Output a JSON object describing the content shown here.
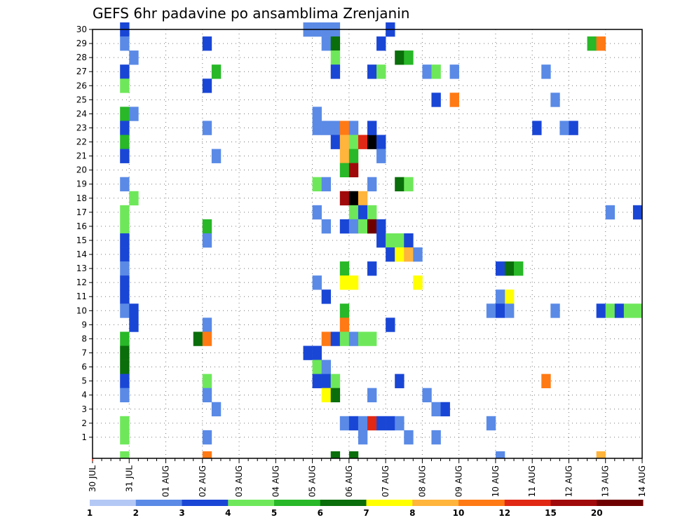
{
  "chart_data": {
    "type": "heatmap",
    "title": "GEFS 6hr padavine po ansamblima Zrenjanin",
    "y_ticks": [
      "1",
      "2",
      "3",
      "4",
      "5",
      "6",
      "7",
      "8",
      "9",
      "10",
      "11",
      "12",
      "13",
      "14",
      "15",
      "16",
      "17",
      "18",
      "19",
      "20",
      "21",
      "22",
      "23",
      "24",
      "25",
      "26",
      "27",
      "28",
      "29",
      "30"
    ],
    "x_ticks": [
      "30 JUL",
      "31 JUL",
      "01 AUG",
      "02 AUG",
      "03 AUG",
      "04 AUG",
      "05 AUG",
      "06 AUG",
      "07 AUG",
      "08 AUG",
      "09 AUG",
      "10 AUG",
      "11 AUG",
      "12 AUG",
      "13 AUG",
      "14 AUG"
    ],
    "x_start": "30 JUL 00",
    "step_hours": 6,
    "members": 30,
    "grid": true,
    "colorbar": {
      "colors": [
        "#b4c8f5",
        "#5a8ae6",
        "#1a46d6",
        "#6ee85a",
        "#28b828",
        "#0a6e0a",
        "#ffff00",
        "#ffb43c",
        "#ff7a14",
        "#e02814",
        "#a00a0a",
        "#6e0000"
      ],
      "labels": [
        "1",
        "2",
        "3",
        "4",
        "5",
        "6",
        "7",
        "8",
        "10",
        "12",
        "15",
        "20"
      ]
    },
    "cells": [
      [
        3,
        30,
        2
      ],
      [
        3,
        29,
        1
      ],
      [
        4,
        28,
        1
      ],
      [
        3,
        27,
        2
      ],
      [
        3,
        26,
        3
      ],
      [
        3,
        24,
        4
      ],
      [
        4,
        24,
        1
      ],
      [
        3,
        23,
        2
      ],
      [
        3,
        22,
        4
      ],
      [
        3,
        21,
        2
      ],
      [
        3,
        19,
        1
      ],
      [
        4,
        18,
        3
      ],
      [
        3,
        17,
        3
      ],
      [
        3,
        16,
        3
      ],
      [
        3,
        15,
        2
      ],
      [
        3,
        14,
        2
      ],
      [
        3,
        13,
        1
      ],
      [
        3,
        12,
        2
      ],
      [
        3,
        11,
        2
      ],
      [
        3,
        10,
        1
      ],
      [
        4,
        10,
        2
      ],
      [
        4,
        9,
        2
      ],
      [
        3,
        8,
        4
      ],
      [
        3,
        7,
        5
      ],
      [
        3,
        6,
        5
      ],
      [
        3,
        5,
        2
      ],
      [
        3,
        4,
        1
      ],
      [
        3,
        2,
        3
      ],
      [
        3,
        1,
        3
      ],
      [
        3,
        0,
        3
      ],
      [
        12,
        29,
        2
      ],
      [
        13,
        27,
        4
      ],
      [
        12,
        26,
        2
      ],
      [
        12,
        23,
        1
      ],
      [
        13,
        21,
        1
      ],
      [
        12,
        16,
        4
      ],
      [
        12,
        15,
        1
      ],
      [
        12,
        9,
        1
      ],
      [
        11,
        8,
        5
      ],
      [
        12,
        8,
        8
      ],
      [
        12,
        5,
        3
      ],
      [
        12,
        4,
        1
      ],
      [
        13,
        3,
        1
      ],
      [
        12,
        1,
        1
      ],
      [
        12,
        0,
        8
      ],
      [
        23,
        30,
        1
      ],
      [
        24,
        30,
        1
      ],
      [
        25,
        30,
        1
      ],
      [
        26,
        30,
        1
      ],
      [
        25,
        29,
        1
      ],
      [
        26,
        29,
        5
      ],
      [
        26,
        28,
        3
      ],
      [
        26,
        27,
        2
      ],
      [
        24,
        24,
        1
      ],
      [
        24,
        23,
        1
      ],
      [
        25,
        23,
        1
      ],
      [
        26,
        23,
        1
      ],
      [
        27,
        23,
        8
      ],
      [
        28,
        23,
        1
      ],
      [
        26,
        22,
        2
      ],
      [
        27,
        22,
        7
      ],
      [
        28,
        22,
        3
      ],
      [
        29,
        22,
        9
      ],
      [
        30,
        22,
        12
      ],
      [
        31,
        22,
        2
      ],
      [
        27,
        21,
        7
      ],
      [
        28,
        21,
        4
      ],
      [
        27,
        20,
        4
      ],
      [
        28,
        20,
        10
      ],
      [
        24,
        19,
        3
      ],
      [
        25,
        19,
        1
      ],
      [
        27,
        18,
        10
      ],
      [
        28,
        18,
        12
      ],
      [
        29,
        18,
        7
      ],
      [
        24,
        17,
        1
      ],
      [
        28,
        17,
        3
      ],
      [
        29,
        17,
        2
      ],
      [
        30,
        17,
        3
      ],
      [
        25,
        16,
        1
      ],
      [
        27,
        16,
        2
      ],
      [
        28,
        16,
        1
      ],
      [
        29,
        16,
        3
      ],
      [
        30,
        16,
        11
      ],
      [
        27,
        13,
        4
      ],
      [
        27,
        12,
        6
      ],
      [
        28,
        12,
        6
      ],
      [
        24,
        12,
        1
      ],
      [
        25,
        11,
        2
      ],
      [
        27,
        10,
        4
      ],
      [
        27,
        9,
        8
      ],
      [
        25,
        8,
        8
      ],
      [
        26,
        8,
        2
      ],
      [
        27,
        8,
        3
      ],
      [
        28,
        8,
        1
      ],
      [
        29,
        8,
        3
      ],
      [
        23,
        7,
        2
      ],
      [
        24,
        7,
        2
      ],
      [
        24,
        6,
        3
      ],
      [
        25,
        6,
        1
      ],
      [
        24,
        5,
        2
      ],
      [
        25,
        5,
        2
      ],
      [
        26,
        5,
        3
      ],
      [
        25,
        4,
        6
      ],
      [
        26,
        4,
        5
      ],
      [
        27,
        2,
        1
      ],
      [
        28,
        2,
        2
      ],
      [
        29,
        2,
        1
      ],
      [
        29,
        1,
        1
      ],
      [
        30,
        2,
        9
      ],
      [
        31,
        2,
        2
      ],
      [
        32,
        2,
        2
      ],
      [
        33,
        2,
        1
      ],
      [
        26,
        0,
        5
      ],
      [
        28,
        0,
        5
      ],
      [
        32,
        30,
        2
      ],
      [
        31,
        29,
        2
      ],
      [
        33,
        28,
        5
      ],
      [
        34,
        28,
        4
      ],
      [
        30,
        27,
        2
      ],
      [
        31,
        27,
        3
      ],
      [
        30,
        23,
        2
      ],
      [
        31,
        21,
        1
      ],
      [
        30,
        19,
        1
      ],
      [
        33,
        19,
        5
      ],
      [
        34,
        19,
        3
      ],
      [
        31,
        16,
        2
      ],
      [
        31,
        15,
        2
      ],
      [
        32,
        15,
        3
      ],
      [
        33,
        15,
        3
      ],
      [
        34,
        15,
        2
      ],
      [
        32,
        14,
        2
      ],
      [
        33,
        14,
        6
      ],
      [
        34,
        14,
        7
      ],
      [
        35,
        14,
        1
      ],
      [
        30,
        13,
        2
      ],
      [
        35,
        12,
        6
      ],
      [
        32,
        9,
        2
      ],
      [
        30,
        8,
        3
      ],
      [
        30,
        4,
        1
      ],
      [
        33,
        5,
        2
      ],
      [
        34,
        1,
        1
      ],
      [
        36,
        27,
        1
      ],
      [
        37,
        27,
        3
      ],
      [
        39,
        27,
        1
      ],
      [
        37,
        25,
        2
      ],
      [
        39,
        25,
        8
      ],
      [
        36,
        4,
        1
      ],
      [
        37,
        3,
        1
      ],
      [
        38,
        3,
        2
      ],
      [
        37,
        1,
        1
      ],
      [
        44,
        13,
        2
      ],
      [
        45,
        13,
        5
      ],
      [
        46,
        13,
        4
      ],
      [
        45,
        11,
        6
      ],
      [
        44,
        11,
        1
      ],
      [
        43,
        10,
        1
      ],
      [
        44,
        10,
        2
      ],
      [
        45,
        10,
        1
      ],
      [
        43,
        2,
        1
      ],
      [
        44,
        0,
        1
      ],
      [
        49,
        27,
        1
      ],
      [
        50,
        25,
        1
      ],
      [
        48,
        23,
        2
      ],
      [
        51,
        23,
        1
      ],
      [
        52,
        23,
        2
      ],
      [
        49,
        5,
        8
      ],
      [
        50,
        10,
        1
      ],
      [
        54,
        29,
        4
      ],
      [
        55,
        29,
        8
      ],
      [
        56,
        17,
        1
      ],
      [
        59,
        17,
        2
      ],
      [
        55,
        10,
        2
      ],
      [
        56,
        10,
        3
      ],
      [
        57,
        10,
        2
      ],
      [
        58,
        10,
        3
      ],
      [
        59,
        10,
        3
      ],
      [
        55,
        0,
        7
      ]
    ]
  }
}
